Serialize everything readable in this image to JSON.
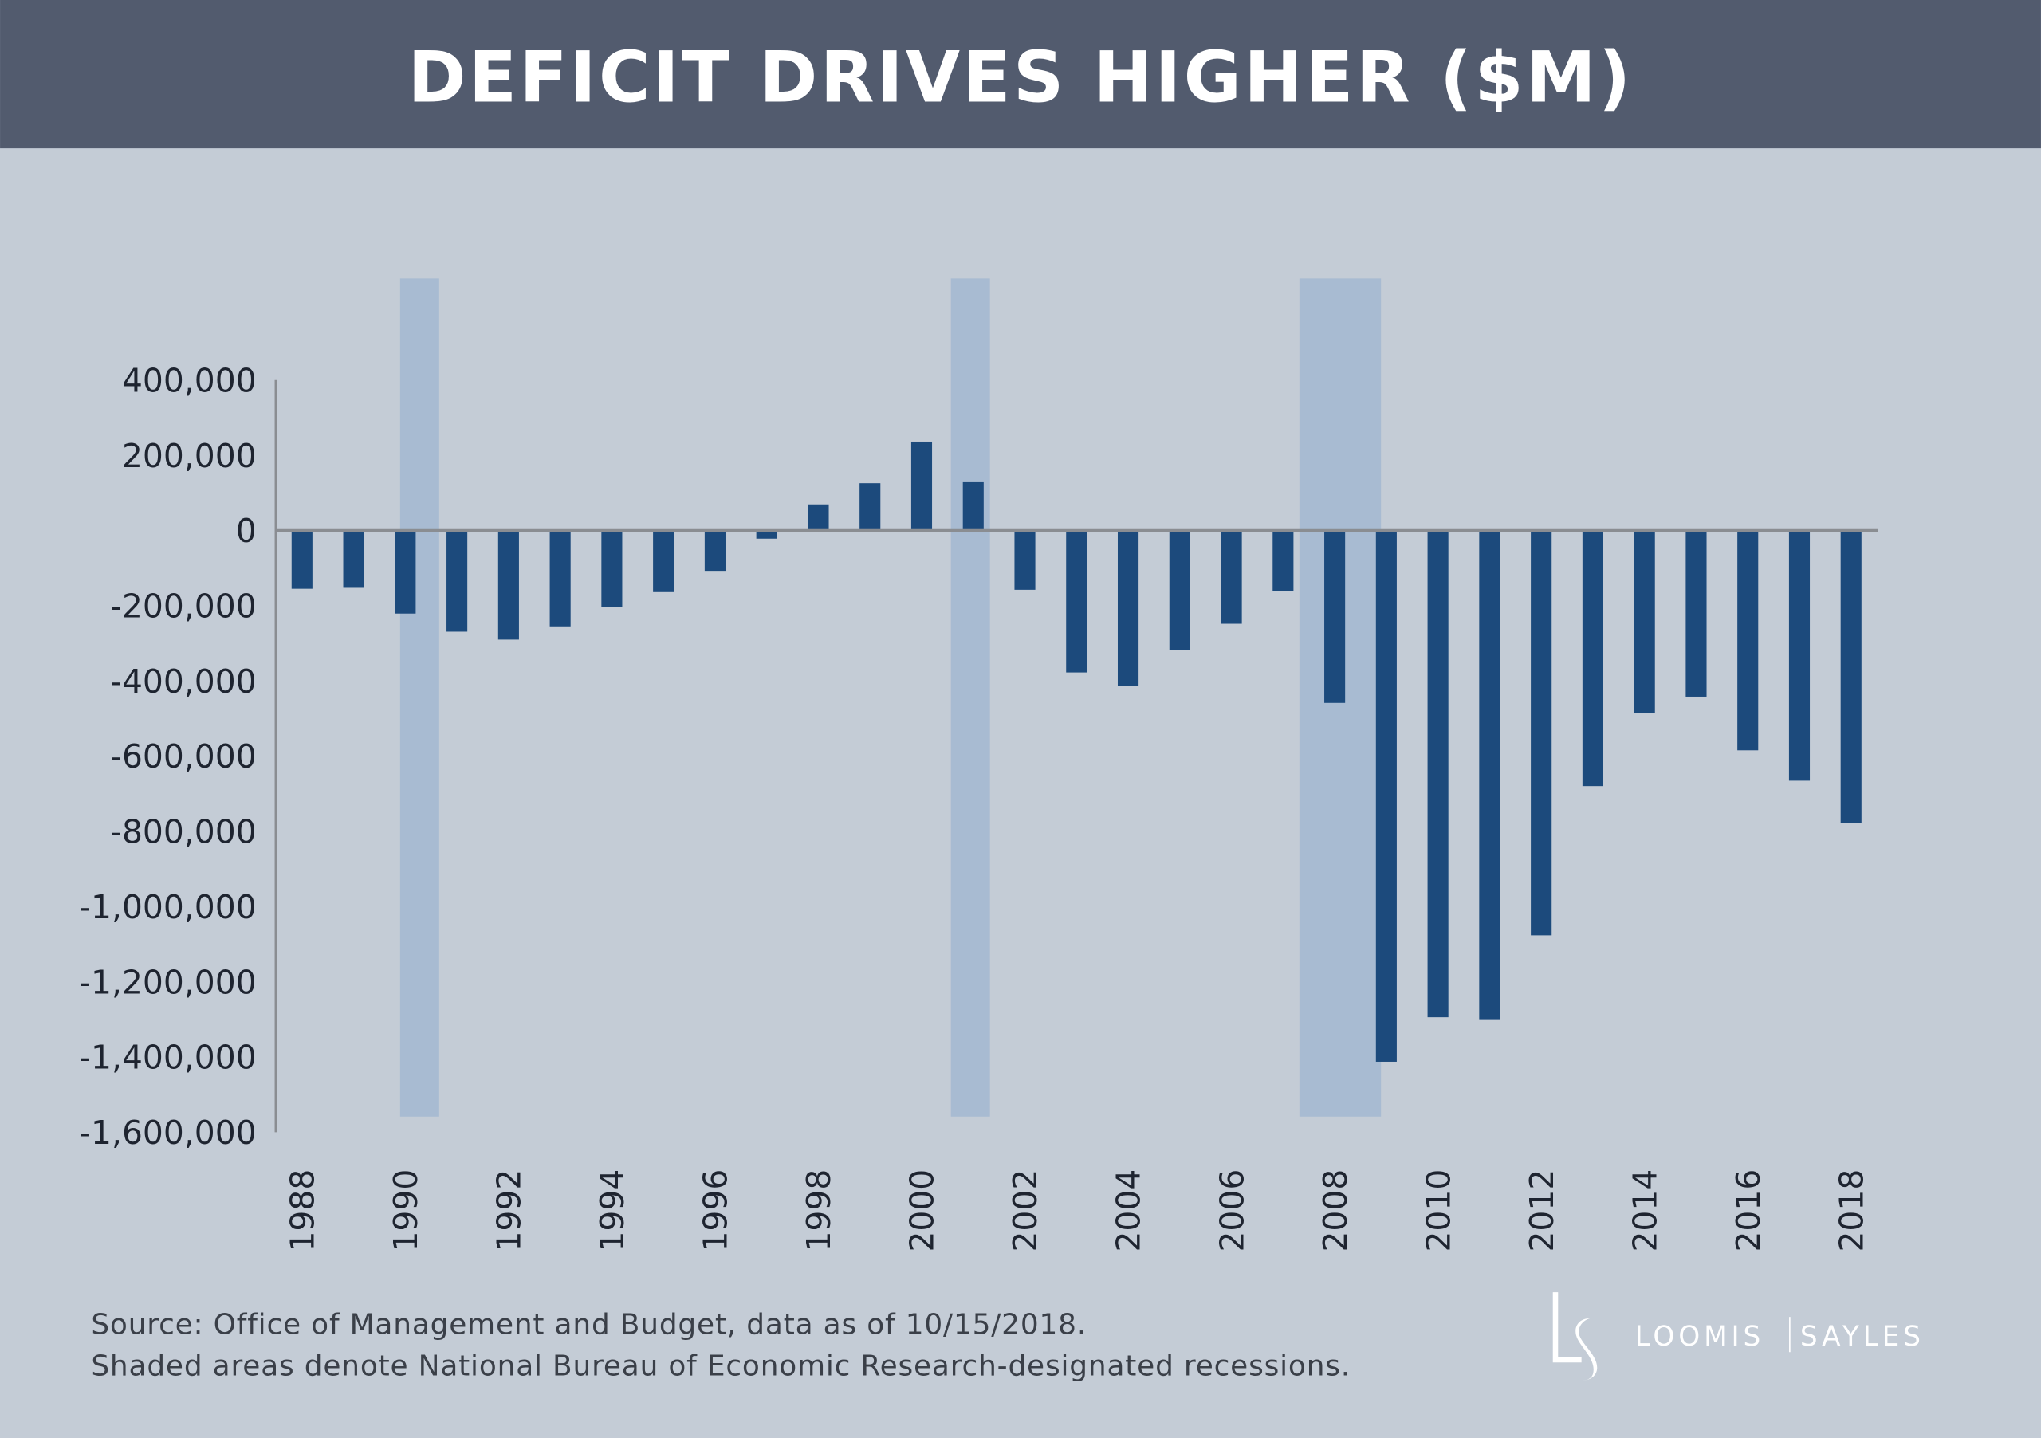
{
  "header": {
    "title": "DEFICIT DRIVES HIGHER ($M)"
  },
  "colors": {
    "header_bg": "#525b6e",
    "background": "#c4ccd6",
    "bar": "#1c4a7c",
    "recession_shading": "#a8bbd2",
    "axis": "#8a8d92"
  },
  "chart_data": {
    "type": "bar",
    "title": "DEFICIT DRIVES HIGHER ($M)",
    "xlabel": "",
    "ylabel": "",
    "ylim": [
      -1600000,
      400000
    ],
    "grid": false,
    "legend": "none",
    "y_ticks": [
      "400,000",
      "200,000",
      "0",
      "-200,000",
      "-400,000",
      "-600,000",
      "-800,000",
      "-1,000,000",
      "-1,200,000",
      "-1,400,000",
      "-1,600,000"
    ],
    "y_tick_values": [
      400000,
      200000,
      0,
      -200000,
      -400000,
      -600000,
      -800000,
      -1000000,
      -1200000,
      -1400000,
      -1600000
    ],
    "x_ticks": [
      "1988",
      "1990",
      "1992",
      "1994",
      "1996",
      "1998",
      "2000",
      "2002",
      "2004",
      "2006",
      "2008",
      "2010",
      "2012",
      "2014",
      "2016",
      "2018"
    ],
    "categories": [
      1988,
      1989,
      1990,
      1991,
      1992,
      1993,
      1994,
      1995,
      1996,
      1997,
      1998,
      1999,
      2000,
      2001,
      2002,
      2003,
      2004,
      2005,
      2006,
      2007,
      2008,
      2009,
      2010,
      2011,
      2012,
      2013,
      2014,
      2015,
      2016,
      2017,
      2018
    ],
    "values": [
      -155178,
      -152639,
      -221036,
      -269238,
      -290321,
      -255051,
      -203186,
      -163952,
      -107431,
      -21884,
      69270,
      125610,
      236241,
      128236,
      -157758,
      -377585,
      -412727,
      -318346,
      -248181,
      -160701,
      -458553,
      -1412688,
      -1294373,
      -1299599,
      -1076573,
      -679775,
      -484602,
      -441960,
      -584651,
      -665446,
      -779000
    ],
    "recessions": [
      {
        "start": "1990-07",
        "end": "1991-03"
      },
      {
        "start": "2001-03",
        "end": "2001-11"
      },
      {
        "start": "2007-12",
        "end": "2009-06"
      }
    ]
  },
  "footer": {
    "source": "Source: Office of Management and Budget, data as of 10/15/2018.",
    "note": "Shaded areas denote National Bureau of Economic Research-designated recessions."
  },
  "logo": {
    "monogram": "LS",
    "left": "LOOMIS",
    "right": "SAYLES"
  }
}
